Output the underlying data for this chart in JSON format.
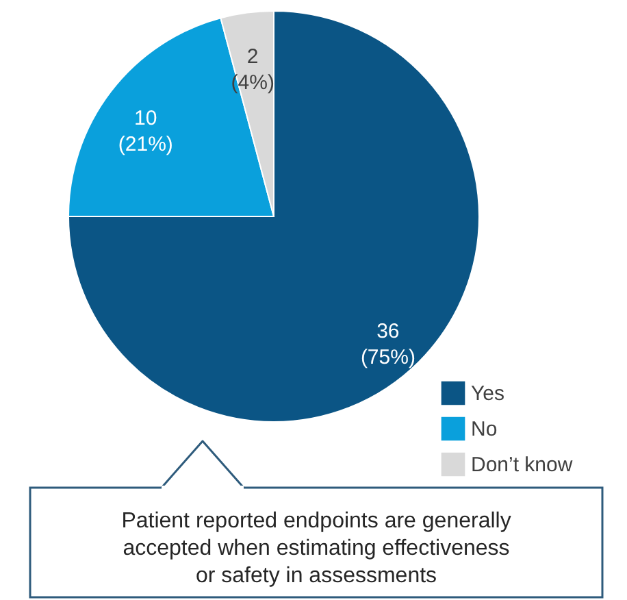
{
  "chart_data": {
    "type": "pie",
    "categories": [
      "Yes",
      "No",
      "Don’t know"
    ],
    "values": [
      36,
      10,
      2
    ],
    "colors": [
      "#0b5585",
      "#0aa0dc",
      "#d9d9d9"
    ],
    "value_labels": [
      "36\n(75%)",
      "10\n(21%)",
      "2\n(4%)"
    ],
    "legend": "bottom right",
    "annotations": [
      "Patient reported endpoints are generally accepted when estimating effectiveness or safety in assessments"
    ]
  }
}
